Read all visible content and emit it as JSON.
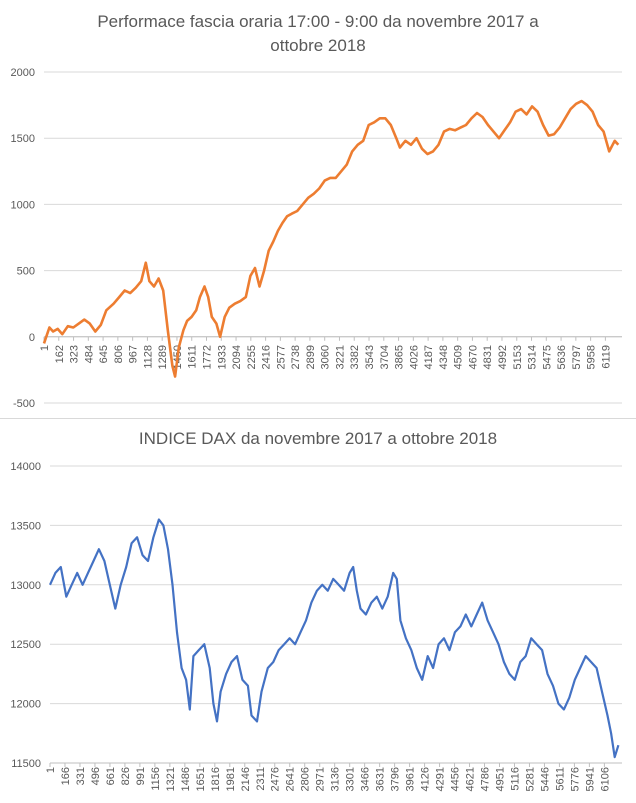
{
  "chart_data": [
    {
      "type": "line",
      "title": "Performace fascia oraria 17:00 - 9:00 da novembre 2017 a ottobre 2018",
      "xlabel": "",
      "ylabel": "",
      "ylim": [
        -500,
        2000
      ],
      "yticks": [
        2000,
        1500,
        1000,
        500,
        0,
        -500
      ],
      "x_tick_labels": [
        "1",
        "162",
        "323",
        "484",
        "645",
        "806",
        "967",
        "1128",
        "1289",
        "1450",
        "1611",
        "1772",
        "1933",
        "2094",
        "2255",
        "2416",
        "2577",
        "2738",
        "2899",
        "3060",
        "3221",
        "3382",
        "3543",
        "3704",
        "3865",
        "4026",
        "4187",
        "4348",
        "4509",
        "4670",
        "4831",
        "4992",
        "5153",
        "5314",
        "5475",
        "5636",
        "5797",
        "5958",
        "6119"
      ],
      "xlim": [
        1,
        6300
      ],
      "color": "#ED7D31",
      "grid": true,
      "series": [
        {
          "values": [
            [
              1,
              -50
            ],
            [
              40,
              30
            ],
            [
              60,
              70
            ],
            [
              100,
              40
            ],
            [
              150,
              60
            ],
            [
              200,
              20
            ],
            [
              260,
              80
            ],
            [
              320,
              70
            ],
            [
              380,
              100
            ],
            [
              440,
              130
            ],
            [
              500,
              100
            ],
            [
              560,
              40
            ],
            [
              620,
              90
            ],
            [
              680,
              200
            ],
            [
              760,
              250
            ],
            [
              820,
              300
            ],
            [
              880,
              350
            ],
            [
              940,
              330
            ],
            [
              1000,
              370
            ],
            [
              1060,
              420
            ],
            [
              1110,
              560
            ],
            [
              1150,
              420
            ],
            [
              1200,
              380
            ],
            [
              1250,
              440
            ],
            [
              1300,
              350
            ],
            [
              1350,
              50
            ],
            [
              1400,
              -220
            ],
            [
              1430,
              -300
            ],
            [
              1470,
              -80
            ],
            [
              1520,
              50
            ],
            [
              1560,
              120
            ],
            [
              1610,
              150
            ],
            [
              1660,
              200
            ],
            [
              1700,
              300
            ],
            [
              1750,
              380
            ],
            [
              1790,
              300
            ],
            [
              1830,
              150
            ],
            [
              1880,
              100
            ],
            [
              1920,
              0
            ],
            [
              1970,
              150
            ],
            [
              2020,
              220
            ],
            [
              2080,
              250
            ],
            [
              2140,
              270
            ],
            [
              2200,
              300
            ],
            [
              2250,
              460
            ],
            [
              2300,
              520
            ],
            [
              2350,
              380
            ],
            [
              2400,
              500
            ],
            [
              2450,
              650
            ],
            [
              2500,
              720
            ],
            [
              2550,
              800
            ],
            [
              2600,
              860
            ],
            [
              2650,
              910
            ],
            [
              2700,
              930
            ],
            [
              2760,
              950
            ],
            [
              2820,
              1000
            ],
            [
              2880,
              1050
            ],
            [
              2940,
              1080
            ],
            [
              3000,
              1120
            ],
            [
              3060,
              1180
            ],
            [
              3120,
              1200
            ],
            [
              3180,
              1200
            ],
            [
              3240,
              1250
            ],
            [
              3300,
              1300
            ],
            [
              3360,
              1400
            ],
            [
              3420,
              1450
            ],
            [
              3480,
              1480
            ],
            [
              3540,
              1600
            ],
            [
              3600,
              1620
            ],
            [
              3660,
              1650
            ],
            [
              3720,
              1650
            ],
            [
              3780,
              1600
            ],
            [
              3840,
              1500
            ],
            [
              3880,
              1430
            ],
            [
              3940,
              1480
            ],
            [
              4000,
              1450
            ],
            [
              4060,
              1500
            ],
            [
              4120,
              1420
            ],
            [
              4180,
              1380
            ],
            [
              4240,
              1400
            ],
            [
              4300,
              1450
            ],
            [
              4360,
              1550
            ],
            [
              4420,
              1570
            ],
            [
              4480,
              1560
            ],
            [
              4540,
              1580
            ],
            [
              4600,
              1600
            ],
            [
              4660,
              1650
            ],
            [
              4720,
              1690
            ],
            [
              4780,
              1660
            ],
            [
              4840,
              1600
            ],
            [
              4900,
              1550
            ],
            [
              4960,
              1500
            ],
            [
              5020,
              1560
            ],
            [
              5080,
              1620
            ],
            [
              5140,
              1700
            ],
            [
              5200,
              1720
            ],
            [
              5260,
              1680
            ],
            [
              5320,
              1740
            ],
            [
              5380,
              1700
            ],
            [
              5440,
              1600
            ],
            [
              5500,
              1520
            ],
            [
              5560,
              1530
            ],
            [
              5620,
              1580
            ],
            [
              5680,
              1650
            ],
            [
              5740,
              1720
            ],
            [
              5800,
              1760
            ],
            [
              5860,
              1780
            ],
            [
              5920,
              1750
            ],
            [
              5980,
              1700
            ],
            [
              6040,
              1600
            ],
            [
              6100,
              1550
            ],
            [
              6160,
              1400
            ],
            [
              6220,
              1480
            ],
            [
              6260,
              1450
            ]
          ]
        }
      ]
    },
    {
      "type": "line",
      "title": "INDICE DAX da novembre 2017 a ottobre 2018",
      "xlabel": "",
      "ylabel": "",
      "ylim": [
        11500,
        14000
      ],
      "yticks": [
        14000,
        13500,
        13000,
        12500,
        12000,
        11500
      ],
      "x_tick_labels": [
        "1",
        "166",
        "331",
        "496",
        "661",
        "826",
        "991",
        "1156",
        "1321",
        "1486",
        "1651",
        "1816",
        "1981",
        "2146",
        "2311",
        "2476",
        "2641",
        "2806",
        "2971",
        "3136",
        "3301",
        "3466",
        "3631",
        "3796",
        "3961",
        "4126",
        "4291",
        "4456",
        "4621",
        "4786",
        "4951",
        "5116",
        "5281",
        "5446",
        "5611",
        "5776",
        "5941",
        "6106"
      ],
      "xlim": [
        1,
        6300
      ],
      "color": "#4472C4",
      "grid": true,
      "series": [
        {
          "values": [
            [
              1,
              13000
            ],
            [
              60,
              13100
            ],
            [
              120,
              13150
            ],
            [
              180,
              12900
            ],
            [
              240,
              13000
            ],
            [
              300,
              13100
            ],
            [
              360,
              13000
            ],
            [
              420,
              13100
            ],
            [
              480,
              13200
            ],
            [
              540,
              13300
            ],
            [
              600,
              13200
            ],
            [
              660,
              13000
            ],
            [
              720,
              12800
            ],
            [
              780,
              13000
            ],
            [
              840,
              13150
            ],
            [
              900,
              13350
            ],
            [
              960,
              13400
            ],
            [
              1020,
              13250
            ],
            [
              1080,
              13200
            ],
            [
              1140,
              13400
            ],
            [
              1200,
              13550
            ],
            [
              1250,
              13500
            ],
            [
              1300,
              13300
            ],
            [
              1350,
              13000
            ],
            [
              1400,
              12600
            ],
            [
              1450,
              12300
            ],
            [
              1500,
              12200
            ],
            [
              1540,
              11950
            ],
            [
              1580,
              12400
            ],
            [
              1640,
              12450
            ],
            [
              1700,
              12500
            ],
            [
              1760,
              12300
            ],
            [
              1800,
              12000
            ],
            [
              1840,
              11850
            ],
            [
              1880,
              12100
            ],
            [
              1940,
              12250
            ],
            [
              2000,
              12350
            ],
            [
              2060,
              12400
            ],
            [
              2120,
              12200
            ],
            [
              2180,
              12150
            ],
            [
              2220,
              11900
            ],
            [
              2280,
              11850
            ],
            [
              2330,
              12100
            ],
            [
              2400,
              12300
            ],
            [
              2460,
              12350
            ],
            [
              2520,
              12450
            ],
            [
              2580,
              12500
            ],
            [
              2640,
              12550
            ],
            [
              2700,
              12500
            ],
            [
              2760,
              12600
            ],
            [
              2820,
              12700
            ],
            [
              2880,
              12850
            ],
            [
              2940,
              12950
            ],
            [
              3000,
              13000
            ],
            [
              3060,
              12950
            ],
            [
              3120,
              13050
            ],
            [
              3180,
              13000
            ],
            [
              3240,
              12950
            ],
            [
              3300,
              13100
            ],
            [
              3340,
              13150
            ],
            [
              3380,
              12950
            ],
            [
              3420,
              12800
            ],
            [
              3480,
              12750
            ],
            [
              3540,
              12850
            ],
            [
              3600,
              12900
            ],
            [
              3660,
              12800
            ],
            [
              3720,
              12900
            ],
            [
              3780,
              13100
            ],
            [
              3820,
              13050
            ],
            [
              3860,
              12700
            ],
            [
              3920,
              12550
            ],
            [
              3980,
              12450
            ],
            [
              4040,
              12300
            ],
            [
              4100,
              12200
            ],
            [
              4160,
              12400
            ],
            [
              4220,
              12300
            ],
            [
              4280,
              12500
            ],
            [
              4340,
              12550
            ],
            [
              4400,
              12450
            ],
            [
              4460,
              12600
            ],
            [
              4520,
              12650
            ],
            [
              4580,
              12750
            ],
            [
              4640,
              12650
            ],
            [
              4700,
              12750
            ],
            [
              4760,
              12850
            ],
            [
              4820,
              12700
            ],
            [
              4880,
              12600
            ],
            [
              4940,
              12500
            ],
            [
              5000,
              12350
            ],
            [
              5060,
              12250
            ],
            [
              5120,
              12200
            ],
            [
              5180,
              12350
            ],
            [
              5240,
              12400
            ],
            [
              5300,
              12550
            ],
            [
              5360,
              12500
            ],
            [
              5420,
              12450
            ],
            [
              5480,
              12250
            ],
            [
              5540,
              12150
            ],
            [
              5600,
              12000
            ],
            [
              5660,
              11950
            ],
            [
              5720,
              12050
            ],
            [
              5780,
              12200
            ],
            [
              5840,
              12300
            ],
            [
              5900,
              12400
            ],
            [
              5960,
              12350
            ],
            [
              6020,
              12300
            ],
            [
              6080,
              12100
            ],
            [
              6140,
              11900
            ],
            [
              6180,
              11750
            ],
            [
              6220,
              11550
            ],
            [
              6260,
              11650
            ]
          ]
        }
      ]
    }
  ]
}
